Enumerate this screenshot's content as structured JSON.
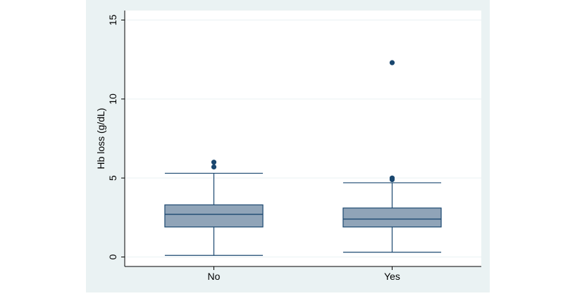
{
  "chart_data": {
    "type": "box",
    "title": "",
    "xlabel": "",
    "ylabel": "Hb loss (g/dL)",
    "ylim": [
      -0.6,
      15.6
    ],
    "yticks": [
      0,
      5,
      10,
      15
    ],
    "ytick_labels": [
      "0",
      "5",
      "10",
      "15"
    ],
    "grid": true,
    "categories": [
      "No",
      "Yes"
    ],
    "boxes": [
      {
        "category": "No",
        "whisker_low": 0.1,
        "q1": 1.9,
        "median": 2.7,
        "q3": 3.3,
        "whisker_high": 5.3,
        "outliers": [
          5.7,
          6.0
        ]
      },
      {
        "category": "Yes",
        "whisker_low": 0.3,
        "q1": 1.9,
        "median": 2.4,
        "q3": 3.1,
        "whisker_high": 4.7,
        "outliers": [
          4.9,
          5.0,
          12.3
        ]
      }
    ],
    "colors": {
      "plot_background": "#eaf2f3",
      "box_fill": "#90a4b8",
      "box_stroke": "#1a476f",
      "outlier": "#1a476f",
      "grid": "#eaf2f3"
    }
  }
}
